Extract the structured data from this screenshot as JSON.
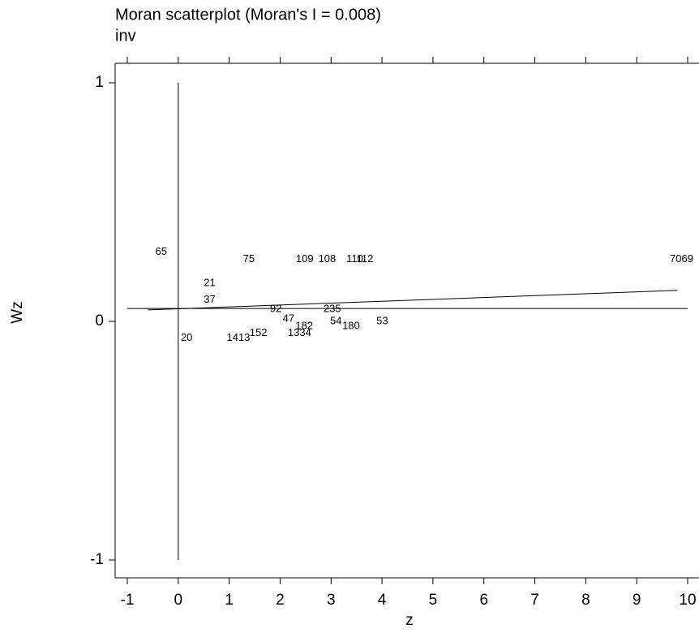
{
  "chart_data": {
    "type": "scatter",
    "title": "Moran scatterplot (Moran's I = 0.008)",
    "subtitle": "inv",
    "x_label": "z",
    "y_label": "Wz",
    "xlim": [
      -1,
      10
    ],
    "xticks": [
      -1,
      0,
      1,
      2,
      3,
      4,
      5,
      6,
      7,
      8,
      9,
      10
    ],
    "ylim": [
      -1,
      1
    ],
    "yticks": [
      -1,
      0,
      1
    ],
    "point_labels": [
      "7069",
      "109",
      "108",
      "110",
      "112",
      "75",
      "235",
      "54",
      "180",
      "53",
      "47",
      "182",
      "152",
      "1334",
      "1413",
      "92",
      "21",
      "37",
      "20",
      "65"
    ],
    "x": [
      9.65,
      2.31,
      2.75,
      3.3,
      3.5,
      1.27,
      2.85,
      2.98,
      3.22,
      3.89,
      2.05,
      2.3,
      1.4,
      2.15,
      0.95,
      1.8,
      0.5,
      0.5,
      0.05,
      -0.45
    ],
    "y": [
      0.26,
      0.26,
      0.26,
      0.26,
      0.26,
      0.26,
      0.05,
      0.0,
      -0.02,
      0.0,
      0.01,
      -0.02,
      -0.05,
      -0.05,
      -0.07,
      0.05,
      0.16,
      0.09,
      -0.07,
      0.29
    ],
    "mean_line_y": 0.054,
    "fit_line": {
      "x": [
        -0.6,
        9.8
      ],
      "y": [
        0.048,
        0.13
      ]
    }
  }
}
